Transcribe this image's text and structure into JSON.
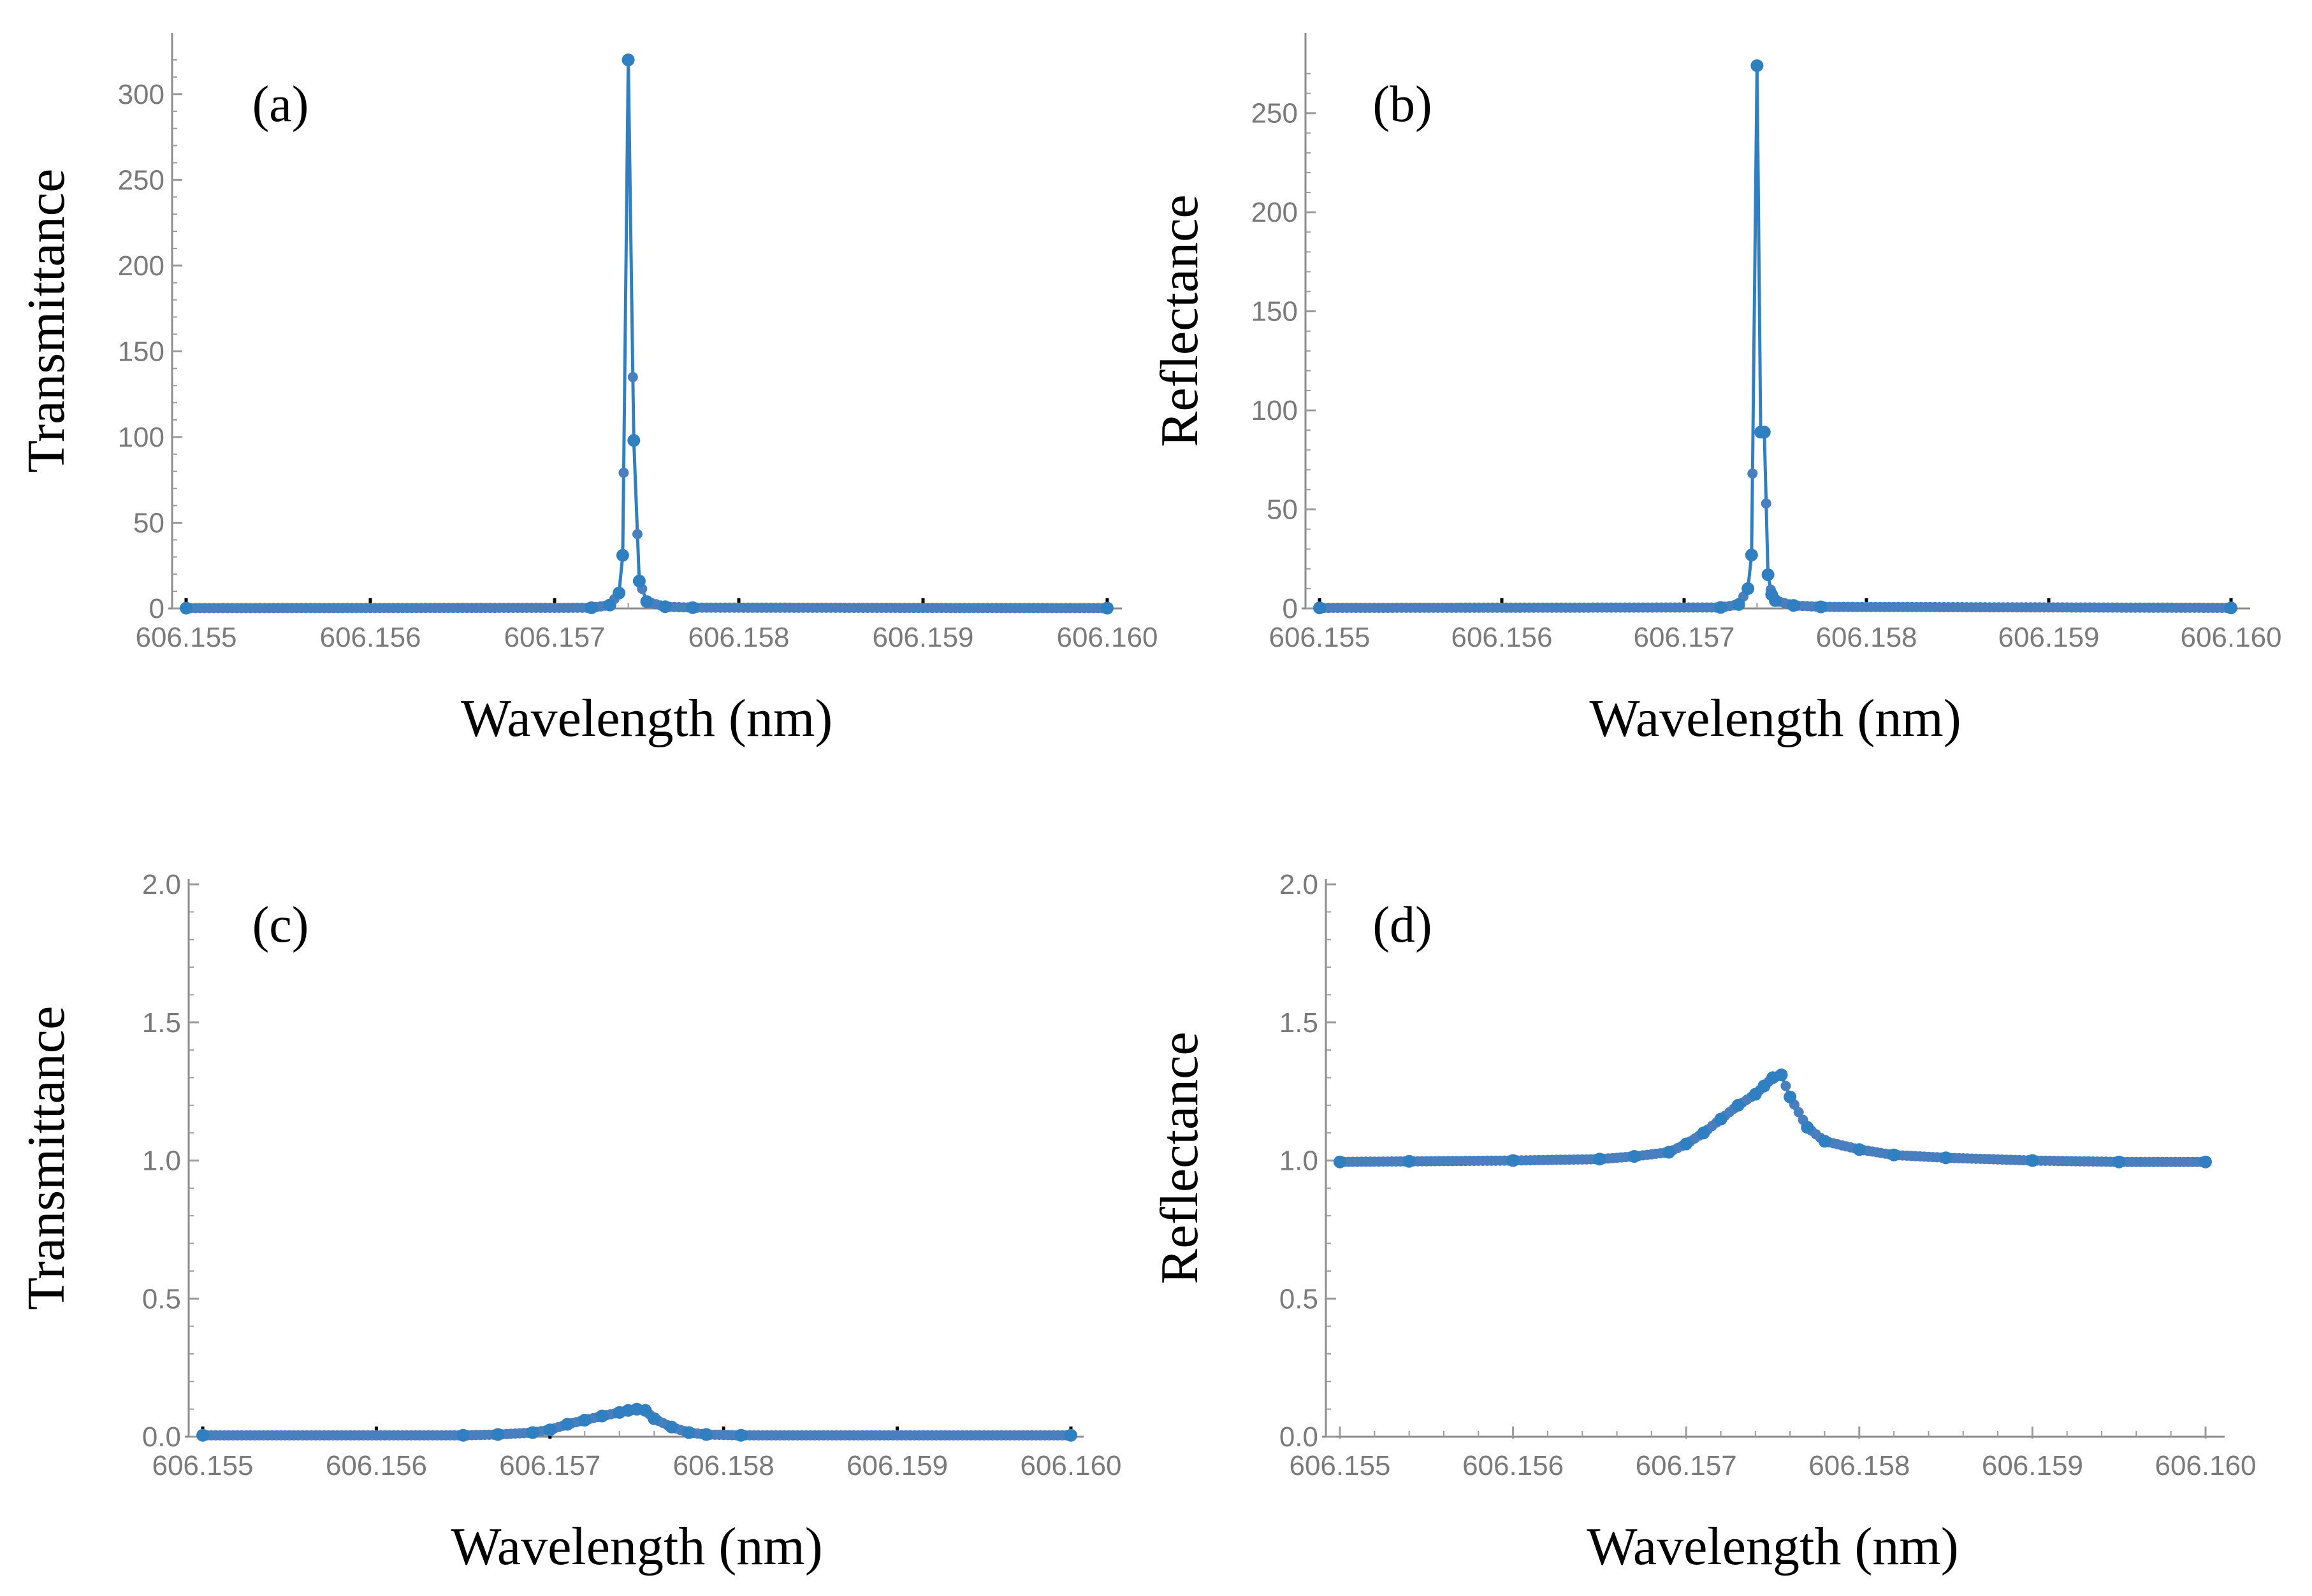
{
  "colors": {
    "series": "#4a7fbf",
    "line": "#2f7fc1"
  },
  "chart_data": [
    {
      "panel": "(a)",
      "type": "line",
      "title": "",
      "xlabel": "Wavelength (nm)",
      "ylabel": "Transmittance",
      "xlim": [
        606.155,
        606.16
      ],
      "ylim": [
        0,
        320
      ],
      "x_ticks": [
        "606.155",
        "606.156",
        "606.157",
        "606.158",
        "606.159",
        "606.160"
      ],
      "y_ticks": [
        "0",
        "50",
        "100",
        "150",
        "200",
        "250",
        "300"
      ],
      "series": [
        {
          "name": "Transmittance",
          "points": [
            [
              606.155,
              0.2
            ],
            [
              606.1572,
              0.4
            ],
            [
              606.1573,
              2
            ],
            [
              606.15735,
              9
            ],
            [
              606.15737,
              31
            ],
            [
              606.1574,
              320
            ],
            [
              606.15743,
              98
            ],
            [
              606.15746,
              16
            ],
            [
              606.1575,
              4
            ],
            [
              606.1576,
              1
            ],
            [
              606.15775,
              0.5
            ],
            [
              606.16,
              0.2
            ]
          ]
        }
      ]
    },
    {
      "panel": "(b)",
      "type": "line",
      "title": "",
      "xlabel": "Wavelength (nm)",
      "ylabel": "Reflectance",
      "xlim": [
        606.155,
        606.16
      ],
      "ylim": [
        0,
        275
      ],
      "x_ticks": [
        "606.155",
        "606.156",
        "606.157",
        "606.158",
        "606.159",
        "606.160"
      ],
      "y_ticks": [
        "0",
        "50",
        "100",
        "150",
        "200",
        "250"
      ],
      "series": [
        {
          "name": "Reflectance",
          "points": [
            [
              606.155,
              0.3
            ],
            [
              606.1572,
              0.5
            ],
            [
              606.1573,
              2
            ],
            [
              606.15735,
              10
            ],
            [
              606.15737,
              27
            ],
            [
              606.1574,
              274
            ],
            [
              606.15742,
              89
            ],
            [
              606.15744,
              89
            ],
            [
              606.15746,
              17
            ],
            [
              606.15748,
              7
            ],
            [
              606.1575,
              4
            ],
            [
              606.1576,
              1.5
            ],
            [
              606.15775,
              0.8
            ],
            [
              606.16,
              0.3
            ]
          ]
        }
      ]
    },
    {
      "panel": "(c)",
      "type": "line",
      "title": "",
      "xlabel": "Wavelength (nm)",
      "ylabel": "Transmittance",
      "xlim": [
        606.155,
        606.16
      ],
      "ylim": [
        0,
        2.0
      ],
      "x_ticks": [
        "606.155",
        "606.156",
        "606.157",
        "606.158",
        "606.159",
        "606.160"
      ],
      "y_ticks": [
        "0.0",
        "0.5",
        "1.0",
        "1.5",
        "2.0"
      ],
      "series": [
        {
          "name": "Transmittance",
          "points": [
            [
              606.155,
              0.005
            ],
            [
              606.1565,
              0.005
            ],
            [
              606.1567,
              0.008
            ],
            [
              606.1569,
              0.015
            ],
            [
              606.157,
              0.025
            ],
            [
              606.1571,
              0.045
            ],
            [
              606.1572,
              0.06
            ],
            [
              606.1573,
              0.075
            ],
            [
              606.1574,
              0.088
            ],
            [
              606.15745,
              0.095
            ],
            [
              606.1575,
              0.1
            ],
            [
              606.15755,
              0.095
            ],
            [
              606.1576,
              0.065
            ],
            [
              606.1577,
              0.035
            ],
            [
              606.1578,
              0.015
            ],
            [
              606.1579,
              0.008
            ],
            [
              606.1581,
              0.005
            ],
            [
              606.16,
              0.005
            ]
          ]
        }
      ]
    },
    {
      "panel": "(d)",
      "type": "line",
      "title": "",
      "xlabel": "Wavelength (nm)",
      "ylabel": "Reflectance",
      "xlim": [
        606.155,
        606.16
      ],
      "ylim": [
        0,
        2.0
      ],
      "x_ticks": [
        "606.155",
        "606.156",
        "606.157",
        "606.158",
        "606.159",
        "606.160"
      ],
      "y_ticks": [
        "0.0",
        "0.5",
        "1.0",
        "1.5",
        "2.0"
      ],
      "series": [
        {
          "name": "Reflectance",
          "points": [
            [
              606.155,
              0.995
            ],
            [
              606.1554,
              0.997
            ],
            [
              606.156,
              1.0
            ],
            [
              606.1565,
              1.005
            ],
            [
              606.1567,
              1.015
            ],
            [
              606.1569,
              1.03
            ],
            [
              606.157,
              1.06
            ],
            [
              606.1571,
              1.1
            ],
            [
              606.1572,
              1.15
            ],
            [
              606.1573,
              1.2
            ],
            [
              606.1574,
              1.24
            ],
            [
              606.15745,
              1.27
            ],
            [
              606.1575,
              1.3
            ],
            [
              606.15755,
              1.31
            ],
            [
              606.1576,
              1.23
            ],
            [
              606.1577,
              1.12
            ],
            [
              606.1578,
              1.07
            ],
            [
              606.158,
              1.04
            ],
            [
              606.1582,
              1.02
            ],
            [
              606.1585,
              1.01
            ],
            [
              606.159,
              1.0
            ],
            [
              606.1595,
              0.995
            ],
            [
              606.16,
              0.995
            ]
          ]
        }
      ]
    }
  ]
}
